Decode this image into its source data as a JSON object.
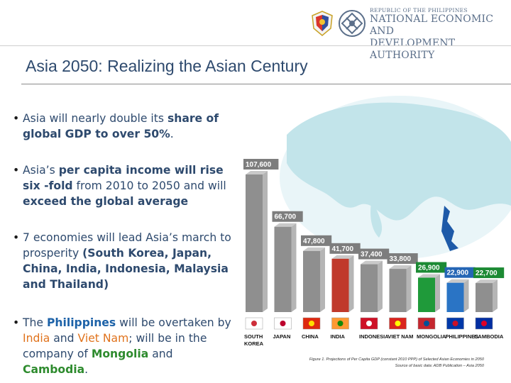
{
  "header": {
    "org_small": "REPUBLIC OF THE PHILIPPINES",
    "org_line1": "NATIONAL ECONOMIC AND",
    "org_line2": "DEVELOPMENT AUTHORITY",
    "seal_icon": "philippine-seal-icon",
    "logo_icon": "neda-logo-icon"
  },
  "title": "Asia 2050: Realizing the Asian Century",
  "bullets": {
    "b1": {
      "t1": "Asia will nearly double its ",
      "t2": "share of global GDP to over 50%",
      "t3": "."
    },
    "b2": {
      "t1": "Asia’s ",
      "t2": "per capita income will rise six -fold",
      "t3": " from 2010 to 2050 and will ",
      "t4": "exceed the global average"
    },
    "b3": {
      "t1": "7 economies will lead Asia’s march to prosperity ",
      "t2": "(South Korea, Japan, China, India, Indonesia, Malaysia and Thailand)"
    },
    "b4": {
      "t1": "The ",
      "t2": "Philippines",
      "t3": " will be overtaken by ",
      "t4": "India",
      "t5": " and ",
      "t6": "Viet Nam",
      "t7": "; will be in the company of ",
      "t8": "Mongolia",
      "t9": " and ",
      "t10": "Cambodia",
      "t11": "."
    }
  },
  "chart_data": {
    "type": "bar",
    "categories": [
      "SOUTH KOREA",
      "JAPAN",
      "CHINA",
      "INDIA",
      "INDONESIA",
      "VIET NAM",
      "MONGOLIA",
      "PHILIPPINES",
      "CAMBODIA"
    ],
    "values": [
      107600,
      66700,
      47800,
      41700,
      37400,
      33800,
      26900,
      22900,
      22700
    ],
    "labels": [
      "107,600",
      "66,700",
      "47,800",
      "41,700",
      "37,400",
      "33,800",
      "26,900",
      "22,900",
      "22,700"
    ],
    "bar_colors": [
      "#8f8f8f",
      "#8f8f8f",
      "#8f8f8f",
      "#c0392b",
      "#8f8f8f",
      "#8f8f8f",
      "#1f9a3a",
      "#2a74c5",
      "#8f8f8f"
    ],
    "label_bg": [
      "#7d7d7d",
      "#7d7d7d",
      "#7d7d7d",
      "#7d7d7d",
      "#7d7d7d",
      "#7d7d7d",
      "#1c8a34",
      "#2566b5",
      "#1c8a34"
    ],
    "flag_icons": [
      "south-korea-flag-icon",
      "japan-flag-icon",
      "china-flag-icon",
      "india-flag-icon",
      "indonesia-flag-icon",
      "vietnam-flag-icon",
      "mongolia-flag-icon",
      "philippines-flag-icon",
      "cambodia-flag-icon"
    ],
    "map_colors": {
      "ocean": "#dff0f4",
      "land": "#bfe3e9",
      "highlight": "#1e5aa8"
    }
  },
  "caption": {
    "line1": "Figure 1. Projections of Per Capita GDP (constant 2010 PPP) of Selected Asian Economies in 2050",
    "line2": "Source of basic data: ADB Publication – Asia 2050"
  }
}
